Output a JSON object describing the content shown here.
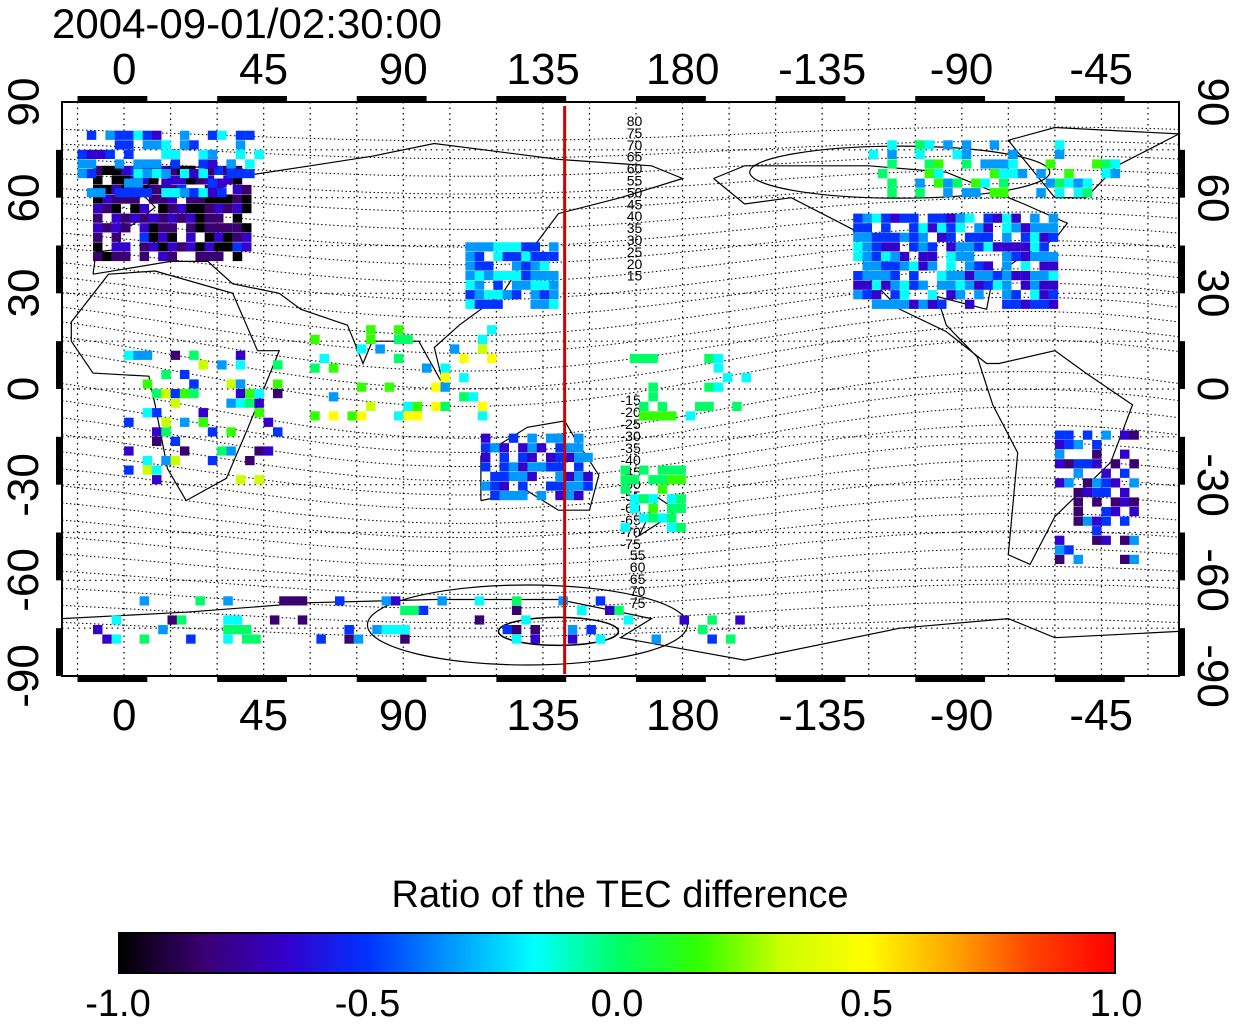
{
  "title": "2004-09-01/02:30:00",
  "map": {
    "projection": "cylindrical equidistant",
    "lon_range": [
      -20,
      340
    ],
    "lat_range": [
      -90,
      90
    ],
    "x_ticks_top": [
      "0",
      "45",
      "90",
      "135",
      "180",
      "-135",
      "-90",
      "-45"
    ],
    "x_ticks_bottom": [
      "0",
      "45",
      "90",
      "135",
      "180",
      "-135",
      "-90",
      "-45"
    ],
    "y_ticks_left": [
      "90",
      "60",
      "30",
      "0",
      "-30",
      "-60",
      "-90"
    ],
    "y_ticks_right": [
      "90",
      "60",
      "30",
      "0",
      "-30",
      "-60",
      "-90"
    ],
    "meridian_line_lon": 142,
    "meridian_line_color": "#d00000",
    "contour_labels_north": [
      "80",
      "75",
      "70",
      "65",
      "60",
      "55",
      "50",
      "45",
      "40",
      "35",
      "30",
      "25",
      "20",
      "15"
    ],
    "contour_labels_south": [
      "-15",
      "-20",
      "-25",
      "-30",
      "-35",
      "-40",
      "-45",
      "-50",
      "-55",
      "-60",
      "-65",
      "-70",
      "-75"
    ],
    "contour_labels_south_alt": [
      "55",
      "60",
      "65",
      "70",
      "75"
    ]
  },
  "colorbar": {
    "title": "Ratio of the TEC difference",
    "range": [
      -1.0,
      1.0
    ],
    "labels": [
      "-1.0",
      "-0.5",
      "0.0",
      "0.5",
      "1.0"
    ],
    "colors": [
      "#000000",
      "#3a0070",
      "#3300cc",
      "#0033ff",
      "#0099ff",
      "#00ffff",
      "#00ff66",
      "#33ff00",
      "#ccff00",
      "#ffff00",
      "#ffaa00",
      "#ff4400",
      "#ff0000"
    ]
  }
}
